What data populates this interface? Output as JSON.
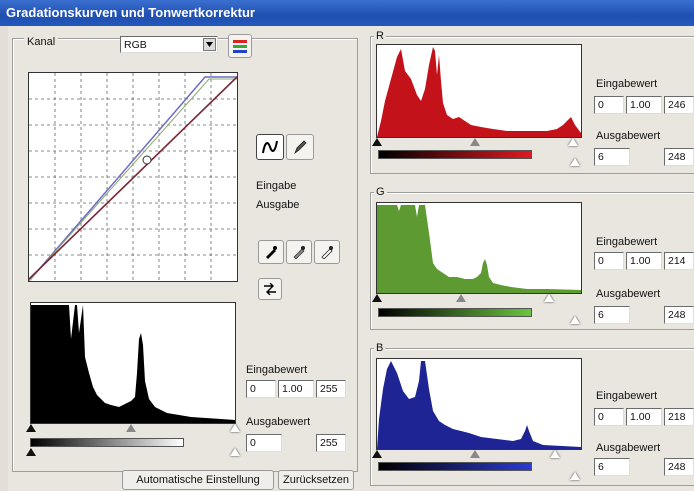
{
  "window": {
    "title": "Gradationskurven und Tonwertkorrektur"
  },
  "channel": {
    "label": "Kanal",
    "value": "RGB"
  },
  "curve_panel": {
    "eingabe_label": "Eingabe",
    "ausgabe_label": "Ausgabe"
  },
  "rgb": {
    "input_label": "Eingabewert",
    "in_black": "0",
    "in_gamma": "1.00",
    "in_white": "255",
    "output_label": "Ausgabewert",
    "out_black": "0",
    "out_white": "255"
  },
  "red": {
    "label": "R",
    "input_label": "Eingabewert",
    "in_black": "0",
    "in_gamma": "1.00",
    "in_white": "246",
    "output_label": "Ausgabewert",
    "out_black": "6",
    "out_white": "248",
    "color": "#c4121b"
  },
  "green": {
    "label": "G",
    "input_label": "Eingabewert",
    "in_black": "0",
    "in_gamma": "1.00",
    "in_white": "214",
    "output_label": "Ausgabewert",
    "out_black": "6",
    "out_white": "248",
    "color": "#5d9a32"
  },
  "blue": {
    "label": "B",
    "input_label": "Eingabewert",
    "in_black": "0",
    "in_gamma": "1.00",
    "in_white": "218",
    "output_label": "Ausgabewert",
    "out_black": "6",
    "out_white": "248",
    "color": "#1e2494"
  },
  "buttons": {
    "auto": "Automatische Einstellung",
    "reset": "Zurücksetzen"
  },
  "icons": {
    "curve_mode": "curve-draw-icon",
    "freehand_mode": "pencil-icon",
    "black_point": "black-eyedropper-icon",
    "gray_point": "gray-eyedropper-icon",
    "white_point": "white-eyedropper-icon",
    "transfer": "transfer-icon",
    "channel_preview": "rgb-channels-icon"
  }
}
